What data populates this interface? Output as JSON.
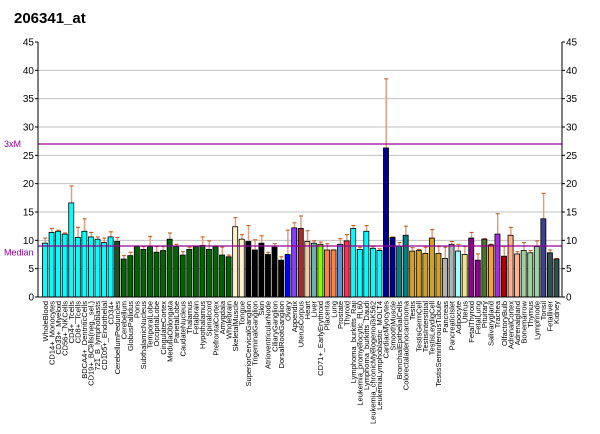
{
  "chart_data": {
    "type": "bar",
    "title": "206341_at",
    "ylim": [
      0,
      45
    ],
    "yticks": [
      0,
      5,
      10,
      15,
      20,
      25,
      30,
      35,
      40,
      45
    ],
    "grid": true,
    "median": {
      "label": "Median",
      "value": 9.0,
      "color": "#990099"
    },
    "threshold": {
      "label": "3xM",
      "value": 27.0,
      "color": "#990099"
    },
    "bars": [
      {
        "c": "WholeBlood",
        "v": 9.5,
        "e": 10.4,
        "col": "#00ffff"
      },
      {
        "c": "CD14+_Monocytes",
        "v": 11.4,
        "e": 12.1,
        "col": "#00ffff"
      },
      {
        "c": "CD33+_Myeloid",
        "v": 11.6,
        "e": 11.8,
        "col": "#00ffff"
      },
      {
        "c": "CD56+_NKCells",
        "v": 11.1,
        "e": 11.3,
        "col": "#00ffff"
      },
      {
        "c": "CD4+_Tcells",
        "v": 16.6,
        "e": 19.6,
        "col": "#00ffff"
      },
      {
        "c": "CD8+_Tcells",
        "v": 10.5,
        "e": 12.3,
        "col": "#00ffff"
      },
      {
        "c": "BDCA4+_DentriticCells",
        "v": 11.6,
        "e": 13.8,
        "col": "#00ffff"
      },
      {
        "c": "CD19+_BCells(neg._sel.)",
        "v": 10.6,
        "e": 11.4,
        "col": "#00ffff"
      },
      {
        "c": "721_B_lymphoblasts",
        "v": 10.2,
        "e": 10.6,
        "col": "#00ffff"
      },
      {
        "c": "CD105+_Endothelial",
        "v": 9.6,
        "e": 10.4,
        "col": "#00ffff"
      },
      {
        "c": "CD34+",
        "v": 10.6,
        "e": 11.5,
        "col": "#00ffff"
      },
      {
        "c": "CerebellumPeduncles",
        "v": 9.8,
        "e": 10.5,
        "col": "#1f4f1f"
      },
      {
        "c": "Cerebellum",
        "v": 6.7,
        "e": 7.3,
        "col": "#006400"
      },
      {
        "c": "GlobusPallidus",
        "v": 7.3,
        "e": 7.9,
        "col": "#006400"
      },
      {
        "c": "Pons",
        "v": 8.9,
        "e": 9.0,
        "col": "#006400"
      },
      {
        "c": "SubthalamicNucleus",
        "v": 8.4,
        "e": 8.9,
        "col": "#006400"
      },
      {
        "c": "TemporalLobe",
        "v": 8.9,
        "e": 10.7,
        "col": "#006400"
      },
      {
        "c": "OccipitalLobe",
        "v": 7.9,
        "e": 8.9,
        "col": "#006400"
      },
      {
        "c": "CingulateCortex",
        "v": 8.2,
        "e": 8.9,
        "col": "#006400"
      },
      {
        "c": "MedullaOblongata",
        "v": 10.2,
        "e": 11.3,
        "col": "#006400"
      },
      {
        "c": "ParietalLobe",
        "v": 8.9,
        "e": 9.3,
        "col": "#006400"
      },
      {
        "c": "CaudateNucleus",
        "v": 7.4,
        "e": 8.0,
        "col": "#006400"
      },
      {
        "c": "Thalamus",
        "v": 8.4,
        "e": 8.8,
        "col": "#006400"
      },
      {
        "c": "Fetalbrain",
        "v": 8.9,
        "e": 9.0,
        "col": "#006400"
      },
      {
        "c": "Hypothalamus",
        "v": 9.1,
        "e": 10.6,
        "col": "#006400"
      },
      {
        "c": "Spinalcord",
        "v": 8.4,
        "e": 9.9,
        "col": "#006400"
      },
      {
        "c": "PrefrontalCortex",
        "v": 8.9,
        "e": 9.0,
        "col": "#006400"
      },
      {
        "c": "Amygdala",
        "v": 7.4,
        "e": 8.8,
        "col": "#006400"
      },
      {
        "c": "Wholebrain",
        "v": 7.1,
        "e": 7.4,
        "col": "#006400"
      },
      {
        "c": "SkeletalMuscle",
        "v": 12.4,
        "e": 14.0,
        "col": "#fff0c8"
      },
      {
        "c": "Tongue",
        "v": 10.2,
        "e": 11.0,
        "col": "#fff0c8"
      },
      {
        "c": "SuperiorCervicalGanglion",
        "v": 9.8,
        "e": 12.6,
        "col": "#000000"
      },
      {
        "c": "TrigeminalGanglion",
        "v": 8.3,
        "e": 10.1,
        "col": "#000000"
      },
      {
        "c": "Skin",
        "v": 9.5,
        "e": 10.8,
        "col": "#000000"
      },
      {
        "c": "AtrioventricularNode",
        "v": 7.5,
        "e": 7.9,
        "col": "#000000"
      },
      {
        "c": "CiliaryGanglion",
        "v": 8.8,
        "e": 9.4,
        "col": "#000000"
      },
      {
        "c": "DorsalRootGanglion",
        "v": 6.5,
        "e": 7.1,
        "col": "#000000"
      },
      {
        "c": "Ovary",
        "v": 7.5,
        "e": 11.8,
        "col": "#0000ff"
      },
      {
        "c": "Appendix",
        "v": 12.2,
        "e": 13.1,
        "col": "#8040ff"
      },
      {
        "c": "UterusCorpus",
        "v": 12.1,
        "e": 14.3,
        "col": "#a03030"
      },
      {
        "c": "Heart",
        "v": 9.8,
        "e": 11.7,
        "col": "#f5cba0"
      },
      {
        "c": "Liver",
        "v": 9.5,
        "e": 9.9,
        "col": "#70b0b0"
      },
      {
        "c": "CD71+_EarlyErythroid",
        "v": 9.3,
        "e": 9.7,
        "col": "#80ff00"
      },
      {
        "c": "Placenta",
        "v": 8.3,
        "e": 9.4,
        "col": "#ff8040"
      },
      {
        "c": "Lung",
        "v": 8.3,
        "e": 8.3,
        "col": "#ff8040"
      },
      {
        "c": "Prostate",
        "v": 9.3,
        "e": 10.3,
        "col": "#6090d0"
      },
      {
        "c": "Thyroid",
        "v": 9.9,
        "e": 11.0,
        "col": "#ff3050"
      },
      {
        "c": "Lymphoma_burkitts_Raji",
        "v": 12.1,
        "e": 12.6,
        "col": "#00ffff"
      },
      {
        "c": "Leukemia_promyelocytic_HL60",
        "v": 8.4,
        "e": 8.8,
        "col": "#00ffff"
      },
      {
        "c": "Lymphoma_burkitts_Daudi",
        "v": 11.6,
        "e": 12.6,
        "col": "#00ffff"
      },
      {
        "c": "Leukemia_chronicMyelogenousK562",
        "v": 8.6,
        "e": 8.9,
        "col": "#00ffff"
      },
      {
        "c": "LeukemiaLymphoblastic_MOLT4",
        "v": 8.2,
        "e": 8.5,
        "col": "#00ffff"
      },
      {
        "c": "CardiacMyocytes",
        "v": 26.3,
        "e": 38.5,
        "col": "#000090"
      },
      {
        "c": "SmoothMuscle",
        "v": 10.5,
        "e": 10.6,
        "col": "#000090"
      },
      {
        "c": "BronchialEpithelialCells",
        "v": 9.0,
        "e": 9.6,
        "col": "#008080"
      },
      {
        "c": "Colorectaladenocarcinoma",
        "v": 10.9,
        "e": 12.5,
        "col": "#008080"
      },
      {
        "c": "Testis",
        "v": 8.1,
        "e": 8.7,
        "col": "#d4a020"
      },
      {
        "c": "TestisGermCell",
        "v": 8.2,
        "e": 8.4,
        "col": "#d4a020"
      },
      {
        "c": "TestisInterstitial",
        "v": 7.7,
        "e": 8.8,
        "col": "#d4a020"
      },
      {
        "c": "TestisLeydigCell",
        "v": 10.4,
        "e": 11.9,
        "col": "#d4a020"
      },
      {
        "c": "TestisSeminiferousTubule",
        "v": 7.7,
        "e": 8.9,
        "col": "#d4a020"
      },
      {
        "c": "Pancreas",
        "v": 6.8,
        "e": 8.8,
        "col": "#b0b0b0"
      },
      {
        "c": "PancreaticIslet",
        "v": 9.3,
        "e": 9.8,
        "col": "#b0b0b0"
      },
      {
        "c": "Adipocyte",
        "v": 8.1,
        "e": 9.3,
        "col": "#a0ffff"
      },
      {
        "c": "Uterus",
        "v": 7.5,
        "e": 8.9,
        "col": "#f0e090"
      },
      {
        "c": "FetalThyroid",
        "v": 10.4,
        "e": 11.4,
        "col": "#900090"
      },
      {
        "c": "FetalLung",
        "v": 6.5,
        "e": 7.6,
        "col": "#900090"
      },
      {
        "c": "Pituitary",
        "v": 10.2,
        "e": 10.3,
        "col": "#507030"
      },
      {
        "c": "Salivarygland",
        "v": 9.2,
        "e": 9.3,
        "col": "#ffa030"
      },
      {
        "c": "Trachea",
        "v": 11.1,
        "e": 14.7,
        "col": "#a030e0"
      },
      {
        "c": "OlfactoryBulb",
        "v": 7.2,
        "e": 8.9,
        "col": "#b00000"
      },
      {
        "c": "AdrenalCortex",
        "v": 10.9,
        "e": 12.3,
        "col": "#ffb090"
      },
      {
        "c": "Adrenalgland",
        "v": 7.6,
        "e": 8.0,
        "col": "#ffb090"
      },
      {
        "c": "Bonemarrow",
        "v": 8.2,
        "e": 9.6,
        "col": "#a0d0a0"
      },
      {
        "c": "Thymus",
        "v": 7.8,
        "e": 8.2,
        "col": "#a0d0a0"
      },
      {
        "c": "Lymphnode",
        "v": 8.9,
        "e": 9.9,
        "col": "#a0d0a0"
      },
      {
        "c": "Tonsil",
        "v": 13.8,
        "e": 18.3,
        "col": "#404090"
      },
      {
        "c": "Fetalliver",
        "v": 7.8,
        "e": 8.3,
        "col": "#305050"
      },
      {
        "c": "Kidney",
        "v": 6.7,
        "e": 6.8,
        "col": "#305050"
      }
    ]
  }
}
